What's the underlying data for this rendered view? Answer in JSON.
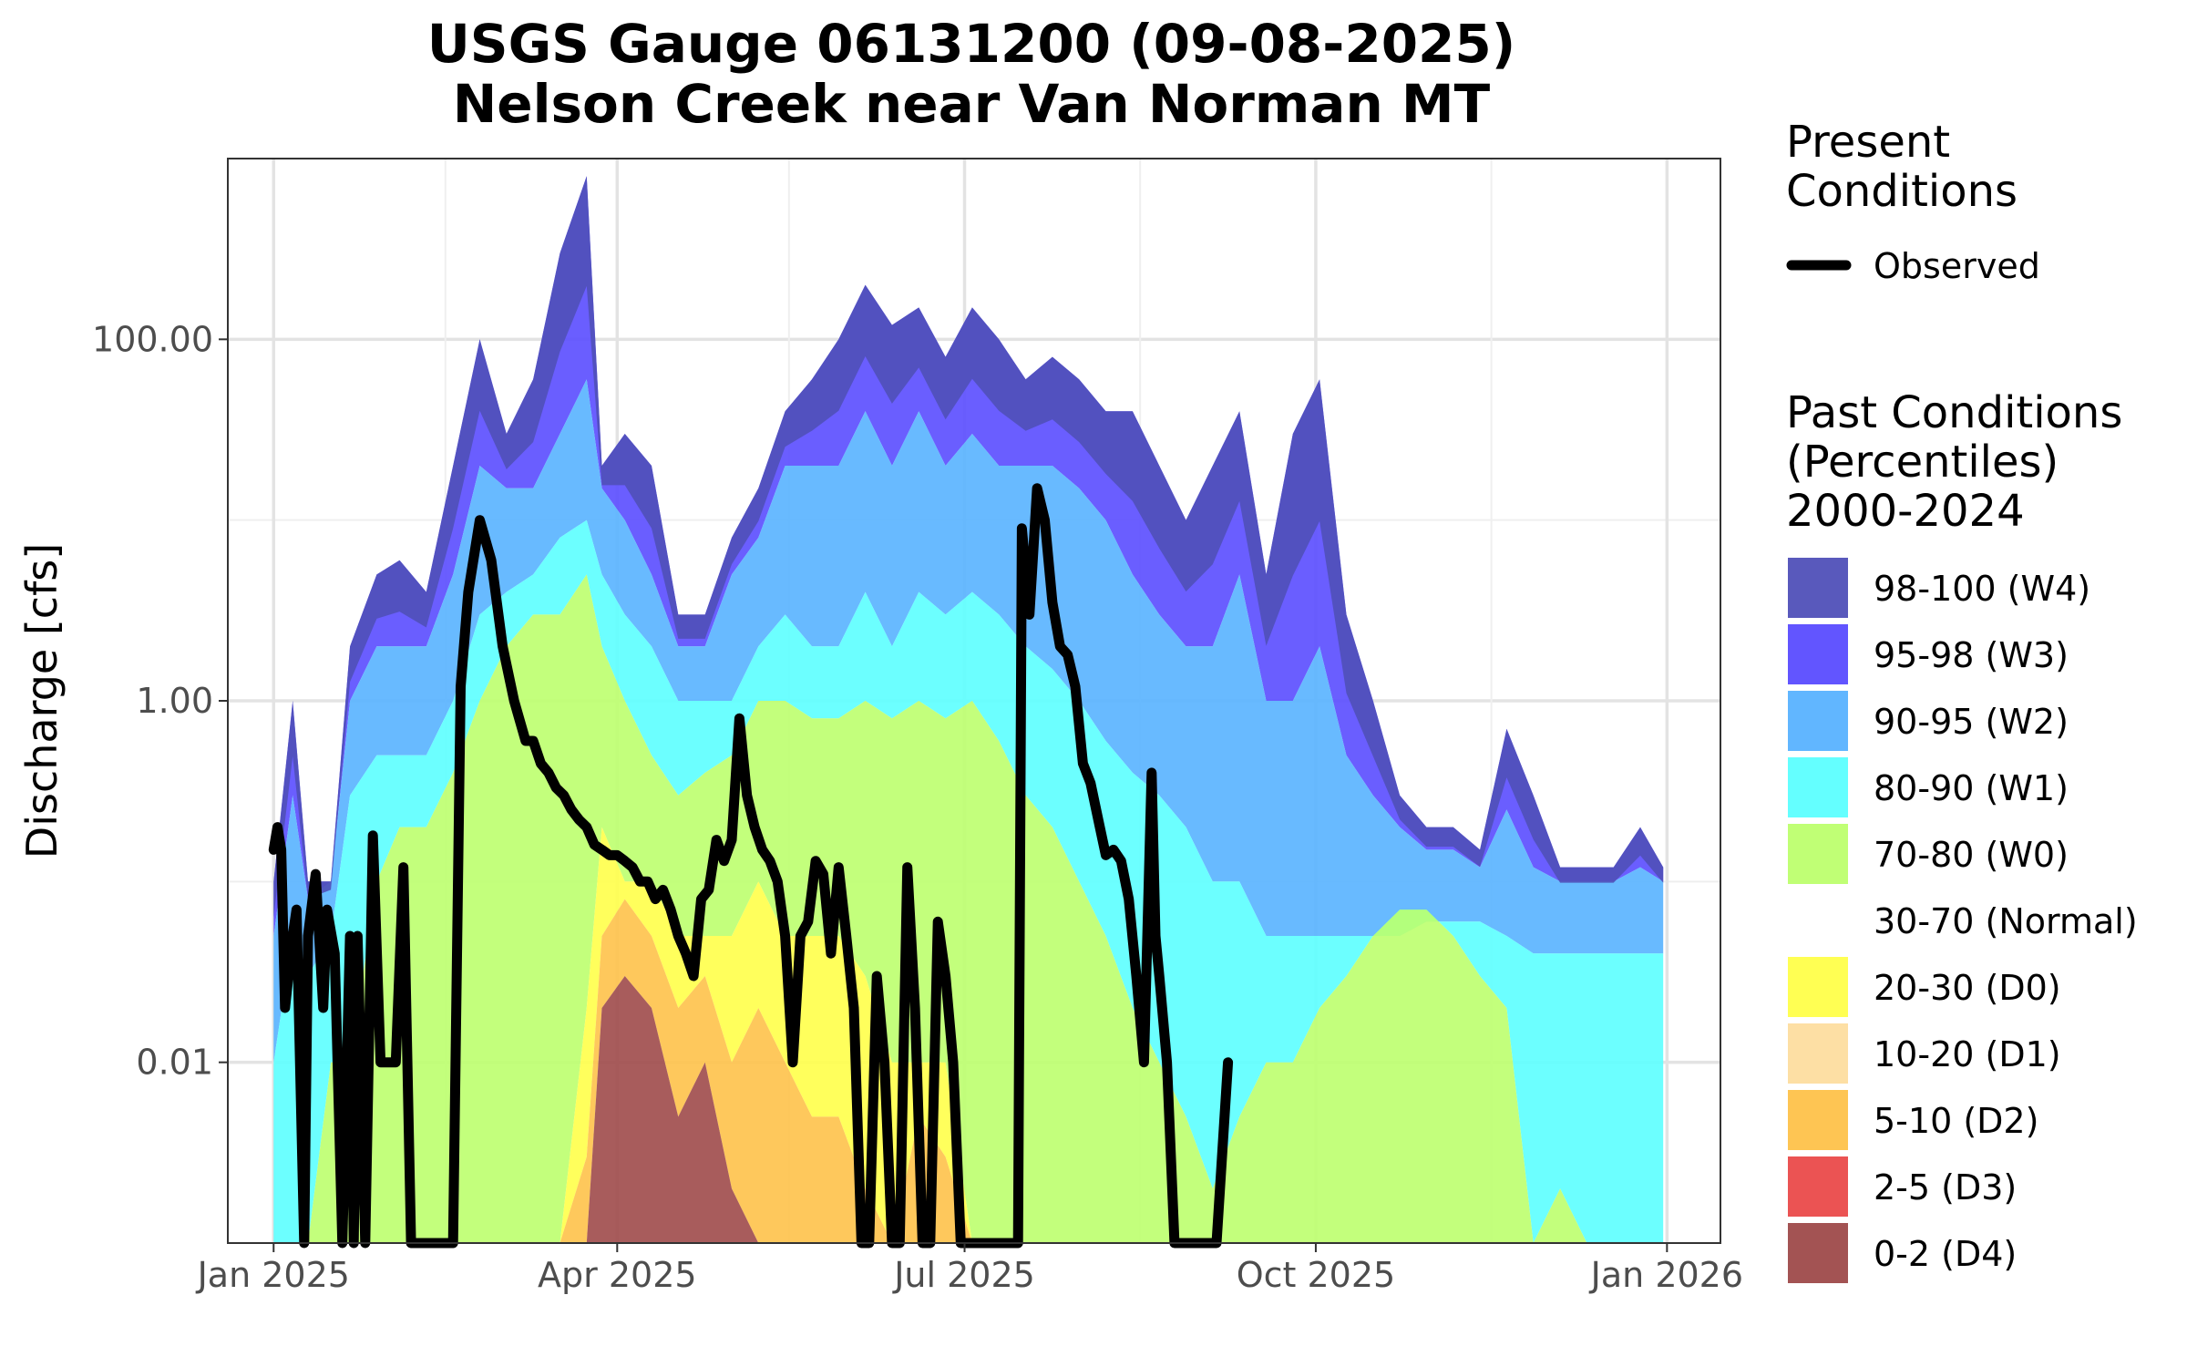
{
  "chart_data": {
    "type": "area",
    "title": "USGS Gauge 06131200 (09-08-2025)",
    "subtitle": "Nelson Creek near Van Norman MT",
    "xlabel": "",
    "ylabel": "Discharge [cfs]",
    "y_scale": "log10",
    "ylim": [
      0.001,
      1000
    ],
    "xlim": [
      "2024-12-20",
      "2026-01-15"
    ],
    "x_ticks": [
      {
        "date": "2025-01-01",
        "label": "Jan 2025"
      },
      {
        "date": "2025-04-01",
        "label": "Apr 2025"
      },
      {
        "date": "2025-07-01",
        "label": "Jul 2025"
      },
      {
        "date": "2025-10-01",
        "label": "Oct 2025"
      },
      {
        "date": "2026-01-01",
        "label": "Jan 2026"
      }
    ],
    "y_ticks": [
      {
        "value": 100,
        "label": "100.00"
      },
      {
        "value": 1,
        "label": "1.00"
      },
      {
        "value": 0.01,
        "label": "0.01"
      }
    ],
    "grid": true,
    "legend_position": "right",
    "present_legend": {
      "title_line1": "Present",
      "title_line2": "Conditions",
      "series_name": "Observed",
      "color": "#000000"
    },
    "past_legend": {
      "title_line1": "Past Conditions",
      "title_line2": "(Percentiles)",
      "title_line3": "2000-2024"
    },
    "bands": [
      {
        "label": "98-100 (W4)",
        "color": "#5050b8"
      },
      {
        "label": "95-98 (W3)",
        "color": "#5a4cff"
      },
      {
        "label": "90-95 (W2)",
        "color": "#58b2ff"
      },
      {
        "label": "80-90 (W1)",
        "color": "#5cffff"
      },
      {
        "label": "70-80 (W0)",
        "color": "#bdff6e"
      },
      {
        "label": "30-70 (Normal)",
        "color": "#ffffff"
      },
      {
        "label": "20-30 (D0)",
        "color": "#ffff4a"
      },
      {
        "label": "10-20 (D1)",
        "color": "#fddd9f"
      },
      {
        "label": "5-10 (D2)",
        "color": "#fec24a"
      },
      {
        "label": "2-5 (D3)",
        "color": "#ea4a4a"
      },
      {
        "label": "0-2 (D4)",
        "color": "#9e4a4a"
      }
    ],
    "percentile_envelope": {
      "x": [
        "2025-01-01",
        "2025-01-06",
        "2025-01-10",
        "2025-01-16",
        "2025-01-21",
        "2025-01-28",
        "2025-02-03",
        "2025-02-10",
        "2025-02-17",
        "2025-02-24",
        "2025-03-03",
        "2025-03-10",
        "2025-03-17",
        "2025-03-24",
        "2025-03-28",
        "2025-04-03",
        "2025-04-10",
        "2025-04-17",
        "2025-04-24",
        "2025-05-01",
        "2025-05-08",
        "2025-05-15",
        "2025-05-22",
        "2025-05-29",
        "2025-06-05",
        "2025-06-12",
        "2025-06-19",
        "2025-06-26",
        "2025-07-03",
        "2025-07-10",
        "2025-07-17",
        "2025-07-24",
        "2025-07-31",
        "2025-08-07",
        "2025-08-14",
        "2025-08-21",
        "2025-08-28",
        "2025-09-04",
        "2025-09-11",
        "2025-09-18",
        "2025-09-25",
        "2025-10-02",
        "2025-10-09",
        "2025-10-16",
        "2025-10-23",
        "2025-10-30",
        "2025-11-06",
        "2025-11-13",
        "2025-11-20",
        "2025-11-27",
        "2025-12-04",
        "2025-12-11",
        "2025-12-18",
        "2025-12-25",
        "2025-12-31"
      ],
      "p100": [
        0.1,
        1.0,
        0.1,
        0.1,
        2.0,
        5.0,
        6.0,
        4.0,
        20.0,
        100.0,
        30.0,
        60.0,
        300.0,
        800.0,
        20.0,
        30.0,
        20.0,
        3.0,
        3.0,
        8.0,
        15.0,
        40.0,
        60.0,
        100.0,
        200.0,
        120.0,
        150.0,
        80.0,
        150.0,
        100.0,
        60.0,
        80.0,
        60.0,
        40.0,
        40.0,
        20.0,
        10.0,
        20.0,
        40.0,
        5.0,
        30.0,
        60.0,
        3.0,
        1.0,
        0.3,
        0.2,
        0.2,
        0.15,
        0.7,
        0.3,
        0.12,
        0.12,
        0.12,
        0.2,
        0.12
      ],
      "p95": [
        0.05,
        0.3,
        0.08,
        0.1,
        1.0,
        2.0,
        2.0,
        2.0,
        5.0,
        20.0,
        15.0,
        15.0,
        30.0,
        60.0,
        15.0,
        10.0,
        5.0,
        2.0,
        2.0,
        5.0,
        8.0,
        20.0,
        20.0,
        20.0,
        40.0,
        20.0,
        40.0,
        20.0,
        30.0,
        20.0,
        20.0,
        20.0,
        15.0,
        10.0,
        5.0,
        3.0,
        2.0,
        2.0,
        5.0,
        1.0,
        1.0,
        2.0,
        0.5,
        0.3,
        0.2,
        0.15,
        0.15,
        0.12,
        0.25,
        0.12,
        0.1,
        0.1,
        0.1,
        0.12,
        0.1
      ],
      "p80": [
        0.01,
        0.05,
        0.03,
        0.05,
        0.3,
        0.5,
        0.5,
        0.5,
        1.0,
        3.0,
        4.0,
        5.0,
        8.0,
        10.0,
        5.0,
        3.0,
        2.0,
        1.0,
        1.0,
        1.0,
        2.0,
        3.0,
        2.0,
        2.0,
        4.0,
        2.0,
        4.0,
        3.0,
        4.0,
        3.0,
        2.0,
        1.5,
        1.0,
        0.6,
        0.4,
        0.3,
        0.2,
        0.1,
        0.1,
        0.05,
        0.05,
        0.05,
        0.05,
        0.05,
        0.05,
        0.06,
        0.06,
        0.06,
        0.05,
        0.04,
        0.04,
        0.04,
        0.04,
        0.04,
        0.04
      ],
      "p70": [
        0.001,
        0.001,
        0.001,
        0.01,
        0.01,
        0.1,
        0.2,
        0.2,
        0.4,
        1.0,
        2.0,
        3.0,
        3.0,
        5.0,
        2.0,
        1.0,
        0.5,
        0.3,
        0.4,
        0.5,
        1.0,
        1.0,
        0.8,
        0.8,
        1.0,
        0.8,
        1.0,
        0.8,
        1.0,
        0.6,
        0.3,
        0.2,
        0.1,
        0.05,
        0.02,
        0.01,
        0.005,
        0.002,
        0.005,
        0.01,
        0.01,
        0.02,
        0.03,
        0.05,
        0.07,
        0.07,
        0.05,
        0.03,
        0.02,
        0.001,
        0.002,
        0.001,
        0.001,
        0.001,
        0.001
      ],
      "p30": [
        0.001,
        0.001,
        0.001,
        0.001,
        0.001,
        0.001,
        0.001,
        0.001,
        0.001,
        0.001,
        0.001,
        0.001,
        0.001,
        0.02,
        0.2,
        0.1,
        0.1,
        0.05,
        0.05,
        0.05,
        0.1,
        0.05,
        0.05,
        0.05,
        0.03,
        0.01,
        0.01,
        0.01,
        0.001,
        0.001,
        0.001,
        0.001,
        0.001,
        0.001,
        0.001,
        0.001,
        0.001,
        0.001,
        0.001,
        0.001,
        0.001,
        0.001,
        0.001,
        0.001,
        0.001,
        0.001,
        0.001,
        0.001,
        0.001,
        0.001,
        0.001,
        0.001,
        0.001,
        0.001,
        0.001
      ],
      "p10": [
        0.001,
        0.001,
        0.001,
        0.001,
        0.001,
        0.001,
        0.001,
        0.001,
        0.001,
        0.001,
        0.001,
        0.001,
        0.001,
        0.003,
        0.05,
        0.08,
        0.05,
        0.02,
        0.03,
        0.01,
        0.02,
        0.01,
        0.005,
        0.005,
        0.002,
        0.001,
        0.005,
        0.003,
        0.001,
        0.001,
        0.001,
        0.001,
        0.001,
        0.001,
        0.001,
        0.001,
        0.001,
        0.001,
        0.001,
        0.001,
        0.001,
        0.001,
        0.001,
        0.001,
        0.001,
        0.001,
        0.001,
        0.001,
        0.001,
        0.001,
        0.001,
        0.001,
        0.001,
        0.001,
        0.001
      ],
      "p2": [
        0.001,
        0.001,
        0.001,
        0.001,
        0.001,
        0.001,
        0.001,
        0.001,
        0.001,
        0.001,
        0.001,
        0.001,
        0.001,
        0.001,
        0.02,
        0.03,
        0.02,
        0.005,
        0.01,
        0.002,
        0.001,
        0.001,
        0.001,
        0.001,
        0.001,
        0.001,
        0.001,
        0.001,
        0.001,
        0.001,
        0.001,
        0.001,
        0.001,
        0.001,
        0.001,
        0.001,
        0.001,
        0.001,
        0.001,
        0.001,
        0.001,
        0.001,
        0.001,
        0.001,
        0.001,
        0.001,
        0.001,
        0.001,
        0.001,
        0.001,
        0.001,
        0.001,
        0.001,
        0.001,
        0.001
      ]
    },
    "series": [
      {
        "name": "Observed",
        "color": "#000000",
        "x": [
          "2025-01-01",
          "2025-01-02",
          "2025-01-03",
          "2025-01-04",
          "2025-01-06",
          "2025-01-07",
          "2025-01-09",
          "2025-01-10",
          "2025-01-12",
          "2025-01-14",
          "2025-01-15",
          "2025-01-17",
          "2025-01-19",
          "2025-01-21",
          "2025-01-22",
          "2025-01-23",
          "2025-01-25",
          "2025-01-27",
          "2025-01-29",
          "2025-01-31",
          "2025-02-02",
          "2025-02-04",
          "2025-02-06",
          "2025-02-08",
          "2025-02-10",
          "2025-02-12",
          "2025-02-14",
          "2025-02-17",
          "2025-02-19",
          "2025-02-21",
          "2025-02-24",
          "2025-02-27",
          "2025-03-02",
          "2025-03-05",
          "2025-03-08",
          "2025-03-10",
          "2025-03-12",
          "2025-03-14",
          "2025-03-16",
          "2025-03-18",
          "2025-03-20",
          "2025-03-22",
          "2025-03-24",
          "2025-03-26",
          "2025-03-28",
          "2025-03-30",
          "2025-04-01",
          "2025-04-03",
          "2025-04-05",
          "2025-04-07",
          "2025-04-09",
          "2025-04-11",
          "2025-04-13",
          "2025-04-15",
          "2025-04-17",
          "2025-04-19",
          "2025-04-21",
          "2025-04-23",
          "2025-04-25",
          "2025-04-27",
          "2025-04-29",
          "2025-05-01",
          "2025-05-03",
          "2025-05-05",
          "2025-05-07",
          "2025-05-09",
          "2025-05-11",
          "2025-05-13",
          "2025-05-15",
          "2025-05-17",
          "2025-05-19",
          "2025-05-21",
          "2025-05-23",
          "2025-05-25",
          "2025-05-27",
          "2025-05-29",
          "2025-05-31",
          "2025-06-02",
          "2025-06-04",
          "2025-06-06",
          "2025-06-08",
          "2025-06-10",
          "2025-06-12",
          "2025-06-14",
          "2025-06-16",
          "2025-06-18",
          "2025-06-20",
          "2025-06-22",
          "2025-06-24",
          "2025-06-26",
          "2025-06-28",
          "2025-06-30",
          "2025-07-02",
          "2025-07-05",
          "2025-07-10",
          "2025-07-15",
          "2025-07-16",
          "2025-07-18",
          "2025-07-20",
          "2025-07-22",
          "2025-07-24",
          "2025-07-26",
          "2025-07-28",
          "2025-07-30",
          "2025-08-01",
          "2025-08-03",
          "2025-08-05",
          "2025-08-07",
          "2025-08-09",
          "2025-08-11",
          "2025-08-13",
          "2025-08-15",
          "2025-08-17",
          "2025-08-19",
          "2025-08-20",
          "2025-08-21",
          "2025-08-23",
          "2025-08-25",
          "2025-08-27",
          "2025-08-29",
          "2025-08-31",
          "2025-09-02",
          "2025-09-05",
          "2025-09-08"
        ],
        "values": [
          0.15,
          0.2,
          0.15,
          0.02,
          0.05,
          0.07,
          0.001,
          0.05,
          0.11,
          0.02,
          0.07,
          0.04,
          0.001,
          0.05,
          0.001,
          0.05,
          0.001,
          0.18,
          0.01,
          0.01,
          0.01,
          0.12,
          0.001,
          0.001,
          0.001,
          0.001,
          0.001,
          0.001,
          1.2,
          4.0,
          10.0,
          6.0,
          2.0,
          1.0,
          0.6,
          0.6,
          0.45,
          0.4,
          0.33,
          0.3,
          0.25,
          0.22,
          0.2,
          0.16,
          0.15,
          0.14,
          0.14,
          0.13,
          0.12,
          0.1,
          0.1,
          0.08,
          0.09,
          0.07,
          0.05,
          0.04,
          0.03,
          0.08,
          0.09,
          0.17,
          0.13,
          0.17,
          0.8,
          0.3,
          0.2,
          0.15,
          0.13,
          0.1,
          0.05,
          0.01,
          0.05,
          0.06,
          0.13,
          0.11,
          0.04,
          0.12,
          0.05,
          0.02,
          0.001,
          0.001,
          0.03,
          0.01,
          0.001,
          0.001,
          0.12,
          0.02,
          0.001,
          0.001,
          0.06,
          0.03,
          0.01,
          0.001,
          0.001,
          0.001,
          0.001,
          0.001,
          9.0,
          3.0,
          15.0,
          10.0,
          3.5,
          2.0,
          1.8,
          1.2,
          0.45,
          0.35,
          0.22,
          0.14,
          0.15,
          0.13,
          0.08,
          0.03,
          0.01,
          0.4,
          0.05,
          0.03,
          0.01,
          0.001,
          0.001,
          0.001,
          0.001,
          0.001,
          0.001,
          0.01
        ]
      }
    ]
  }
}
